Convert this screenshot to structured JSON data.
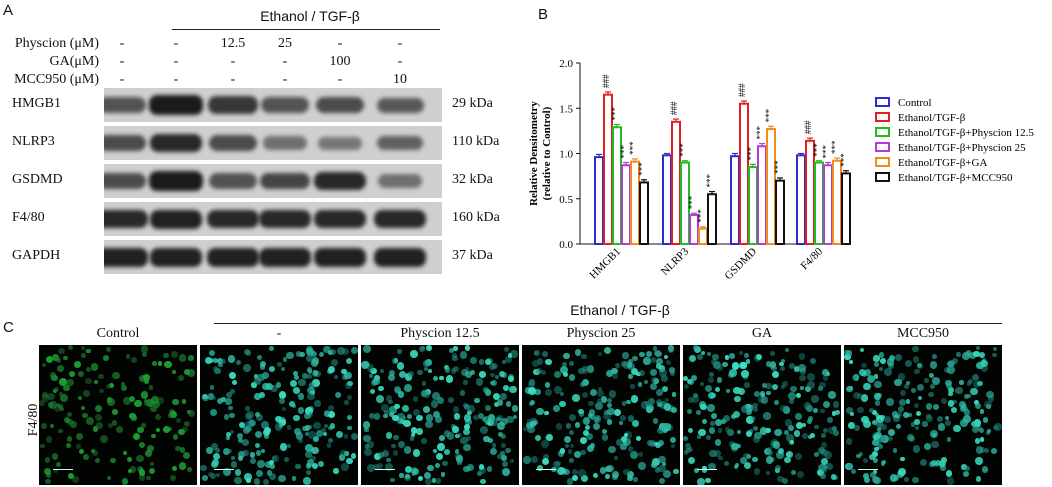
{
  "panel_a": {
    "letter": "A",
    "group_header": "Ethanol / TGF-β",
    "conditions": [
      {
        "label": "Physcion (μM)",
        "values": [
          "-",
          "-",
          "12.5",
          "25",
          "-",
          "-"
        ]
      },
      {
        "label": "GA(μM)",
        "values": [
          "-",
          "-",
          "-",
          "-",
          "100",
          "-"
        ]
      },
      {
        "label": "MCC950 (μM)",
        "values": [
          "-",
          "-",
          "-",
          "-",
          "-",
          "10"
        ]
      }
    ],
    "blots": [
      {
        "protein": "HMGB1",
        "kda": "29 kDa",
        "intensity": [
          0.55,
          0.95,
          0.75,
          0.55,
          0.6,
          0.5
        ]
      },
      {
        "protein": "NLRP3",
        "kda": "110 kDa",
        "intensity": [
          0.6,
          0.85,
          0.6,
          0.35,
          0.3,
          0.45
        ]
      },
      {
        "protein": "GSDMD",
        "kda": "32 kDa",
        "intensity": [
          0.6,
          0.95,
          0.55,
          0.65,
          0.85,
          0.35
        ]
      },
      {
        "protein": "F4/80",
        "kda": "160 kDa",
        "intensity": [
          0.85,
          0.9,
          0.85,
          0.85,
          0.85,
          0.85
        ]
      },
      {
        "protein": "GAPDH",
        "kda": "37 kDa",
        "intensity": [
          0.9,
          0.9,
          0.9,
          0.9,
          0.9,
          0.9
        ]
      }
    ]
  },
  "panel_b": {
    "letter": "B"
  },
  "chart_data": {
    "type": "bar",
    "ylabel": "Relative Densitometry (relative to Control)",
    "ylim": [
      0,
      2.0
    ],
    "yticks": [
      "0.0",
      "0.5",
      "1.0",
      "1.5",
      "2.0"
    ],
    "categories": [
      "HMGB1",
      "NLRP3",
      "GSDMD",
      "F4/80"
    ],
    "series": [
      {
        "name": "Control",
        "color": "#2b2bd6",
        "values": [
          0.96,
          0.98,
          0.97,
          0.98
        ],
        "errors": [
          0.03,
          0.02,
          0.03,
          0.02
        ],
        "marks": [
          "",
          "",
          "",
          ""
        ]
      },
      {
        "name": "Ethanol/TGF-β",
        "color": "#e02020",
        "values": [
          1.65,
          1.35,
          1.55,
          1.14
        ],
        "errors": [
          0.03,
          0.03,
          0.03,
          0.03
        ],
        "marks": [
          "###",
          "###",
          "###",
          "###"
        ]
      },
      {
        "name": "Ethanol/TGF-β+Physcion 12.5",
        "color": "#22bb22",
        "values": [
          1.29,
          0.9,
          0.85,
          0.9
        ],
        "errors": [
          0.03,
          0.02,
          0.03,
          0.02
        ],
        "marks": [
          "***",
          "***",
          "***",
          "***"
        ]
      },
      {
        "name": "Ethanol/TGF-β+Physcion 25",
        "color": "#b23ad6",
        "values": [
          0.87,
          0.32,
          1.08,
          0.87
        ],
        "errors": [
          0.03,
          0.02,
          0.03,
          0.03
        ],
        "marks": [
          "***",
          "***",
          "***",
          "***"
        ]
      },
      {
        "name": "Ethanol/TGF-β+GA",
        "color": "#f08c1a",
        "values": [
          0.91,
          0.17,
          1.27,
          0.92
        ],
        "errors": [
          0.03,
          0.02,
          0.03,
          0.03
        ],
        "marks": [
          "***",
          "***",
          "***",
          "***"
        ]
      },
      {
        "name": "Ethanol/TGF-β+MCC950",
        "color": "#111111",
        "values": [
          0.68,
          0.55,
          0.7,
          0.78
        ],
        "errors": [
          0.03,
          0.03,
          0.03,
          0.03
        ],
        "marks": [
          "***",
          "***",
          "***",
          "***"
        ]
      }
    ],
    "legend_position": "right"
  },
  "panel_c": {
    "letter": "C",
    "group_header": "Ethanol / TGF-β",
    "row_label": "F4/80",
    "columns": [
      "Control",
      "-",
      "Physcion 12.5",
      "Physcion 25",
      "GA",
      "MCC950"
    ],
    "cell_color": "#2fd4a8"
  }
}
